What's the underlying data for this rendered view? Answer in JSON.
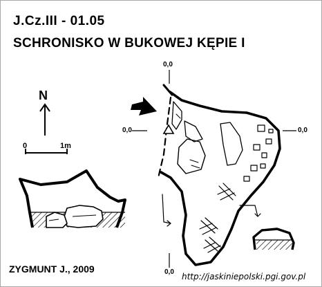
{
  "header": {
    "cave_code": "J.Cz.III - 01.05",
    "cave_name": "SCHRONISKO W BUKOWEJ KĘPIE I"
  },
  "north_arrow": {
    "label": "N",
    "icon": "north-arrow-icon"
  },
  "scale_bar": {
    "start_label": "0",
    "end_label": "1m",
    "length_m": 1
  },
  "plan": {
    "coordinates": {
      "top": "0,0",
      "left": "0,0",
      "right": "0,0",
      "bottom": "0,0"
    },
    "entrance_icon": "entrance-arrow-icon",
    "survey_point_icon": "survey-triangle-icon"
  },
  "footer": {
    "author": "ZYGMUNT J., 2009",
    "source": "http://jaskiniepolski.pgi.gov.pl"
  },
  "colors": {
    "ink": "#000000",
    "paper": "#ffffff",
    "frame": "#a8a8a8"
  }
}
